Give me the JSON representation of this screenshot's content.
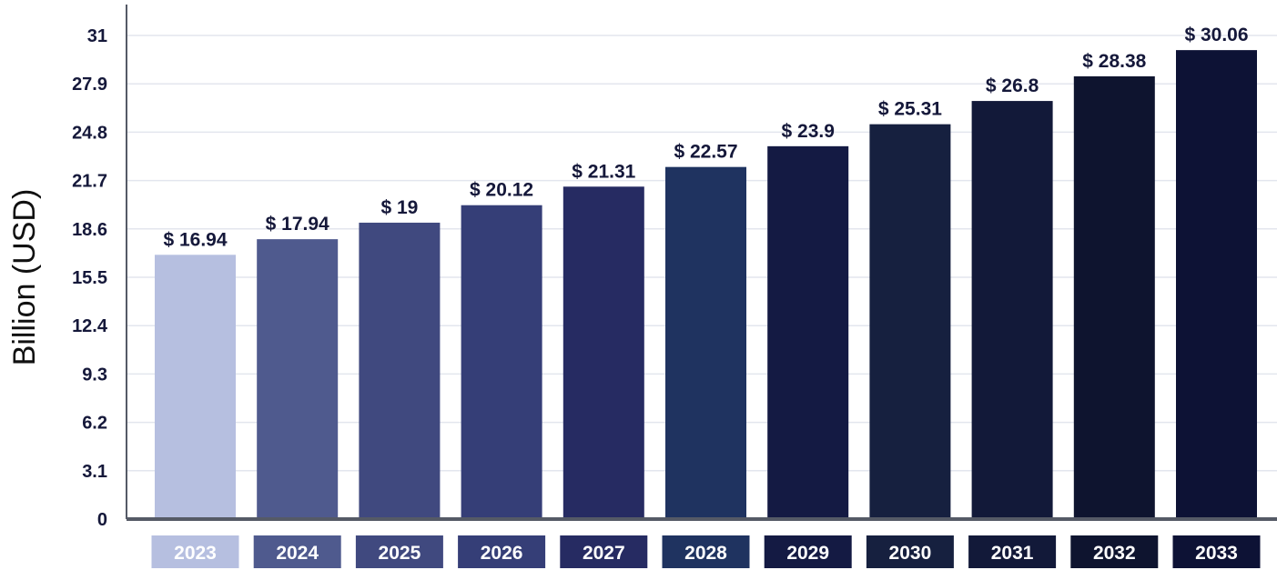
{
  "chart_data": {
    "type": "bar",
    "title": "",
    "xlabel": "",
    "ylabel": "Billion (USD)",
    "ylim": [
      0,
      31
    ],
    "yticks": [
      "0",
      "3.1",
      "6.2",
      "9.3",
      "12.4",
      "15.5",
      "18.6",
      "21.7",
      "24.8",
      "27.9",
      "31"
    ],
    "grid": true,
    "legend": "none",
    "categories": [
      "2023",
      "2024",
      "2025",
      "2026",
      "2027",
      "2028",
      "2029",
      "2030",
      "2031",
      "2032",
      "2033"
    ],
    "values": [
      16.94,
      17.94,
      19,
      20.12,
      21.31,
      22.57,
      23.9,
      25.31,
      26.8,
      28.38,
      30.06
    ],
    "value_labels": [
      "$ 16.94",
      "$ 17.94",
      "$ 19",
      "$ 20.12",
      "$ 21.31",
      "$ 22.57",
      "$ 23.9",
      "$ 25.31",
      "$ 26.8",
      "$ 28.38",
      "$ 30.06"
    ],
    "bar_colors": [
      "#b6bfe0",
      "#4f5a8e",
      "#40497f",
      "#353e77",
      "#262b62",
      "#1f3360",
      "#141a43",
      "#16203f",
      "#121939",
      "#0e142f",
      "#0d1235"
    ]
  }
}
